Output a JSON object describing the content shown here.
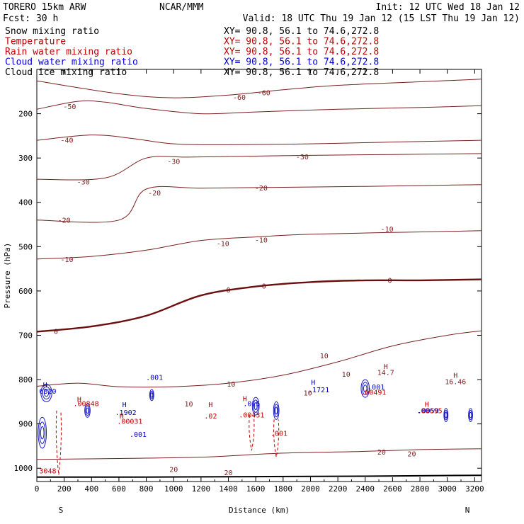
{
  "header": {
    "model": "TORERO  15km ARW",
    "center": "NCAR/MMM",
    "init": "Init: 12 UTC Wed 18 Jan 12",
    "fcst": "Fcst:   30 h",
    "valid": "Valid: 18 UTC Thu 19 Jan 12 (15 LST Thu 19 Jan 12)"
  },
  "legend": [
    {
      "field": "Snow mixing ratio",
      "xy": "XY=  90.8, 56.1 to  74.6,272.8",
      "color": "#000000"
    },
    {
      "field": "Temperature",
      "xy": "XY=  90.8, 56.1 to  74.6,272.8",
      "color": "#c00000"
    },
    {
      "field": "Rain water mixing ratio",
      "xy": "XY=  90.8, 56.1 to  74.6,272.8",
      "color": "#c00000"
    },
    {
      "field": "Cloud water mixing ratio",
      "xy": "XY=  90.8, 56.1 to  74.6,272.8",
      "color": "#0000cc"
    },
    {
      "field": "Cloud ice mixing ratio",
      "xy": "XY=  90.8, 56.1 to  74.6,272.8",
      "color": "#000000"
    }
  ],
  "colors": {
    "temperature": "#7a1f1f",
    "freezing_line": "#6b0f0f",
    "cloud_water": "#1a1acc",
    "rain_water": "#c00000",
    "ground": "#000000"
  },
  "chart_data": {
    "type": "contour",
    "xlabel": "Distance (km)",
    "ylabel": "Pressure (hPa)",
    "xlim": [
      0,
      3250
    ],
    "ylim": [
      1030,
      100
    ],
    "x_ticks": [
      0,
      200,
      400,
      600,
      800,
      1000,
      1200,
      1400,
      1600,
      1800,
      2000,
      2200,
      2400,
      2600,
      2800,
      3000,
      3200
    ],
    "y_ticks": [
      200,
      300,
      400,
      500,
      600,
      700,
      800,
      900,
      1000
    ],
    "x_end_labels": {
      "left": "S",
      "right": "N"
    },
    "temperature_contours": [
      {
        "value": -60,
        "points": [
          [
            0,
            126
          ],
          [
            600,
            155
          ],
          [
            1000,
            164
          ],
          [
            1400,
            158
          ],
          [
            1800,
            146
          ],
          [
            2200,
            136
          ],
          [
            2800,
            128
          ],
          [
            3250,
            122
          ]
        ]
      },
      {
        "value": -50,
        "points": [
          [
            0,
            190
          ],
          [
            300,
            172
          ],
          [
            500,
            174
          ],
          [
            800,
            188
          ],
          [
            1200,
            200
          ],
          [
            1600,
            196
          ],
          [
            2200,
            190
          ],
          [
            2800,
            186
          ],
          [
            3250,
            182
          ]
        ]
      },
      {
        "value": -40,
        "points": [
          [
            0,
            260
          ],
          [
            400,
            248
          ],
          [
            700,
            256
          ],
          [
            1000,
            268
          ],
          [
            1400,
            270
          ],
          [
            2000,
            268
          ],
          [
            2600,
            264
          ],
          [
            3250,
            260
          ]
        ]
      },
      {
        "value": -30,
        "points": [
          [
            0,
            348
          ],
          [
            500,
            345
          ],
          [
            800,
            300
          ],
          [
            1100,
            298
          ],
          [
            1500,
            296
          ],
          [
            2000,
            294
          ],
          [
            2600,
            292
          ],
          [
            3250,
            290
          ]
        ]
      },
      {
        "value": -20,
        "points": [
          [
            0,
            440
          ],
          [
            600,
            440
          ],
          [
            800,
            370
          ],
          [
            1200,
            368
          ],
          [
            1800,
            366
          ],
          [
            2400,
            364
          ],
          [
            3250,
            360
          ]
        ]
      },
      {
        "value": -10,
        "points": [
          [
            0,
            528
          ],
          [
            400,
            522
          ],
          [
            800,
            508
          ],
          [
            1200,
            486
          ],
          [
            1600,
            478
          ],
          [
            2000,
            472
          ],
          [
            2600,
            468
          ],
          [
            3250,
            464
          ]
        ]
      },
      {
        "value": 0,
        "points": [
          [
            0,
            692
          ],
          [
            400,
            680
          ],
          [
            800,
            656
          ],
          [
            1200,
            610
          ],
          [
            1600,
            590
          ],
          [
            2000,
            580
          ],
          [
            2400,
            576
          ],
          [
            2800,
            576
          ],
          [
            3250,
            574
          ]
        ]
      },
      {
        "value": 10,
        "points": [
          [
            0,
            815
          ],
          [
            300,
            808
          ],
          [
            600,
            816
          ],
          [
            1000,
            816
          ],
          [
            1400,
            808
          ],
          [
            1800,
            790
          ],
          [
            2200,
            760
          ],
          [
            2600,
            724
          ],
          [
            3000,
            700
          ],
          [
            3250,
            690
          ]
        ]
      },
      {
        "value": 20,
        "points": [
          [
            0,
            980
          ],
          [
            600,
            978
          ],
          [
            1200,
            975
          ],
          [
            1800,
            966
          ],
          [
            2400,
            962
          ],
          [
            2800,
            958
          ],
          [
            3250,
            956
          ]
        ]
      }
    ],
    "freezing_level_contour": 0,
    "ground_pressure": [
      [
        0,
        1020
      ],
      [
        800,
        1020
      ],
      [
        1600,
        1019
      ],
      [
        2400,
        1018
      ],
      [
        3250,
        1016
      ]
    ],
    "cloud_water_cells": [
      {
        "x": 70,
        "p": 830,
        "w": 80,
        "h": 40
      },
      {
        "x": 40,
        "p": 920,
        "w": 60,
        "h": 70
      },
      {
        "x": 370,
        "p": 870,
        "w": 40,
        "h": 30
      },
      {
        "x": 840,
        "p": 835,
        "w": 30,
        "h": 25
      },
      {
        "x": 1600,
        "p": 860,
        "w": 50,
        "h": 40
      },
      {
        "x": 1750,
        "p": 870,
        "w": 40,
        "h": 40
      },
      {
        "x": 2400,
        "p": 820,
        "w": 60,
        "h": 40
      },
      {
        "x": 2990,
        "p": 880,
        "w": 30,
        "h": 30
      },
      {
        "x": 3170,
        "p": 880,
        "w": 30,
        "h": 30
      }
    ],
    "rain_water_columns": [
      {
        "x": 160,
        "p_top": 870,
        "p_bot": 1015
      },
      {
        "x": 1570,
        "p_top": 880,
        "p_bot": 960
      },
      {
        "x": 1750,
        "p_top": 890,
        "p_bot": 975
      }
    ],
    "annotations": [
      {
        "text": "-60",
        "x": 1480,
        "p": 163,
        "color": "#7a1f1f"
      },
      {
        "text": "-60",
        "x": 1660,
        "p": 153,
        "color": "#7a1f1f"
      },
      {
        "text": "-50",
        "x": 240,
        "p": 184,
        "color": "#7a1f1f"
      },
      {
        "text": "-40",
        "x": 220,
        "p": 260,
        "color": "#7a1f1f"
      },
      {
        "text": "-30",
        "x": 1000,
        "p": 308,
        "color": "#7a1f1f"
      },
      {
        "text": "-30",
        "x": 1940,
        "p": 297,
        "color": "#7a1f1f"
      },
      {
        "text": "-30",
        "x": 340,
        "p": 354,
        "color": "#7a1f1f"
      },
      {
        "text": "-20",
        "x": 860,
        "p": 379,
        "color": "#7a1f1f"
      },
      {
        "text": "-20",
        "x": 1640,
        "p": 368,
        "color": "#7a1f1f"
      },
      {
        "text": "-20",
        "x": 200,
        "p": 440,
        "color": "#7a1f1f"
      },
      {
        "text": "-10",
        "x": 2560,
        "p": 460,
        "color": "#7a1f1f"
      },
      {
        "text": "-10",
        "x": 1360,
        "p": 493,
        "color": "#7a1f1f"
      },
      {
        "text": "-10",
        "x": 1640,
        "p": 485,
        "color": "#7a1f1f"
      },
      {
        "text": "-10",
        "x": 220,
        "p": 529,
        "color": "#7a1f1f"
      },
      {
        "text": "0",
        "x": 2580,
        "p": 576,
        "color": "#6b0f0f"
      },
      {
        "text": "0",
        "x": 1660,
        "p": 589,
        "color": "#6b0f0f"
      },
      {
        "text": "0",
        "x": 1400,
        "p": 598,
        "color": "#6b0f0f"
      },
      {
        "text": "0",
        "x": 140,
        "p": 691,
        "color": "#6b0f0f"
      },
      {
        "text": "10",
        "x": 2100,
        "p": 746,
        "color": "#7a1f1f"
      },
      {
        "text": "10",
        "x": 2260,
        "p": 788,
        "color": "#7a1f1f"
      },
      {
        "text": "10",
        "x": 1420,
        "p": 810,
        "color": "#7a1f1f"
      },
      {
        "text": "10",
        "x": 1980,
        "p": 830,
        "color": "#7a1f1f"
      },
      {
        "text": "10",
        "x": 1110,
        "p": 855,
        "color": "#7a1f1f"
      },
      {
        "text": "20",
        "x": 2520,
        "p": 964,
        "color": "#7a1f1f"
      },
      {
        "text": "20",
        "x": 2740,
        "p": 968,
        "color": "#7a1f1f"
      },
      {
        "text": "20",
        "x": 1000,
        "p": 1003,
        "color": "#7a1f1f"
      },
      {
        "text": "20",
        "x": 1400,
        "p": 1010,
        "color": "#7a1f1f"
      },
      {
        "text": "H",
        "x": 2550,
        "p": 770,
        "color": "#7a1f1f"
      },
      {
        "text": "14.7",
        "x": 2550,
        "p": 784,
        "color": "#7a1f1f"
      },
      {
        "text": "H",
        "x": 3060,
        "p": 790,
        "color": "#7a1f1f"
      },
      {
        "text": "16.46",
        "x": 3060,
        "p": 805,
        "color": "#7a1f1f"
      },
      {
        "text": "H",
        "x": 60,
        "p": 812,
        "color": "#0000cc"
      },
      {
        "text": "6820",
        "x": 80,
        "p": 826,
        "color": "#0000cc"
      },
      {
        "text": ".001",
        "x": 860,
        "p": 795,
        "color": "#0000cc"
      },
      {
        "text": "H",
        "x": 310,
        "p": 845,
        "color": "#c00000"
      },
      {
        "text": ".00848",
        "x": 360,
        "p": 854,
        "color": "#c00000"
      },
      {
        "text": "H",
        "x": 640,
        "p": 857,
        "color": "#0000cc"
      },
      {
        "text": ".1902",
        "x": 650,
        "p": 874,
        "color": "#0000cc"
      },
      {
        "text": "H",
        "x": 620,
        "p": 882,
        "color": "#c00000"
      },
      {
        "text": ".00031",
        "x": 680,
        "p": 894,
        "color": "#c00000"
      },
      {
        "text": ".001",
        "x": 740,
        "p": 924,
        "color": "#0000cc"
      },
      {
        "text": "H",
        "x": 1270,
        "p": 857,
        "color": "#c00000"
      },
      {
        "text": ".02",
        "x": 1270,
        "p": 882,
        "color": "#c00000"
      },
      {
        "text": "H",
        "x": 1520,
        "p": 843,
        "color": "#c00000"
      },
      {
        "text": ".015",
        "x": 1570,
        "p": 854,
        "color": "#0000cc"
      },
      {
        "text": ".00431",
        "x": 1570,
        "p": 880,
        "color": "#c00000"
      },
      {
        "text": ".001",
        "x": 1770,
        "p": 921,
        "color": "#c00000"
      },
      {
        "text": "H",
        "x": 2020,
        "p": 806,
        "color": "#0000cc"
      },
      {
        "text": ".1721",
        "x": 2060,
        "p": 823,
        "color": "#0000cc"
      },
      {
        "text": ".001",
        "x": 2480,
        "p": 817,
        "color": "#0000cc"
      },
      {
        "text": ".00491",
        "x": 2460,
        "p": 829,
        "color": "#c00000"
      },
      {
        "text": "H",
        "x": 2850,
        "p": 856,
        "color": "#c00000"
      },
      {
        "text": ".0059",
        "x": 2860,
        "p": 870,
        "color": "#0000cc"
      },
      {
        "text": ".00695",
        "x": 2870,
        "p": 870,
        "color": "#c00000"
      },
      {
        "text": "3048",
        "x": 80,
        "p": 1006,
        "color": "#c00000"
      }
    ]
  }
}
